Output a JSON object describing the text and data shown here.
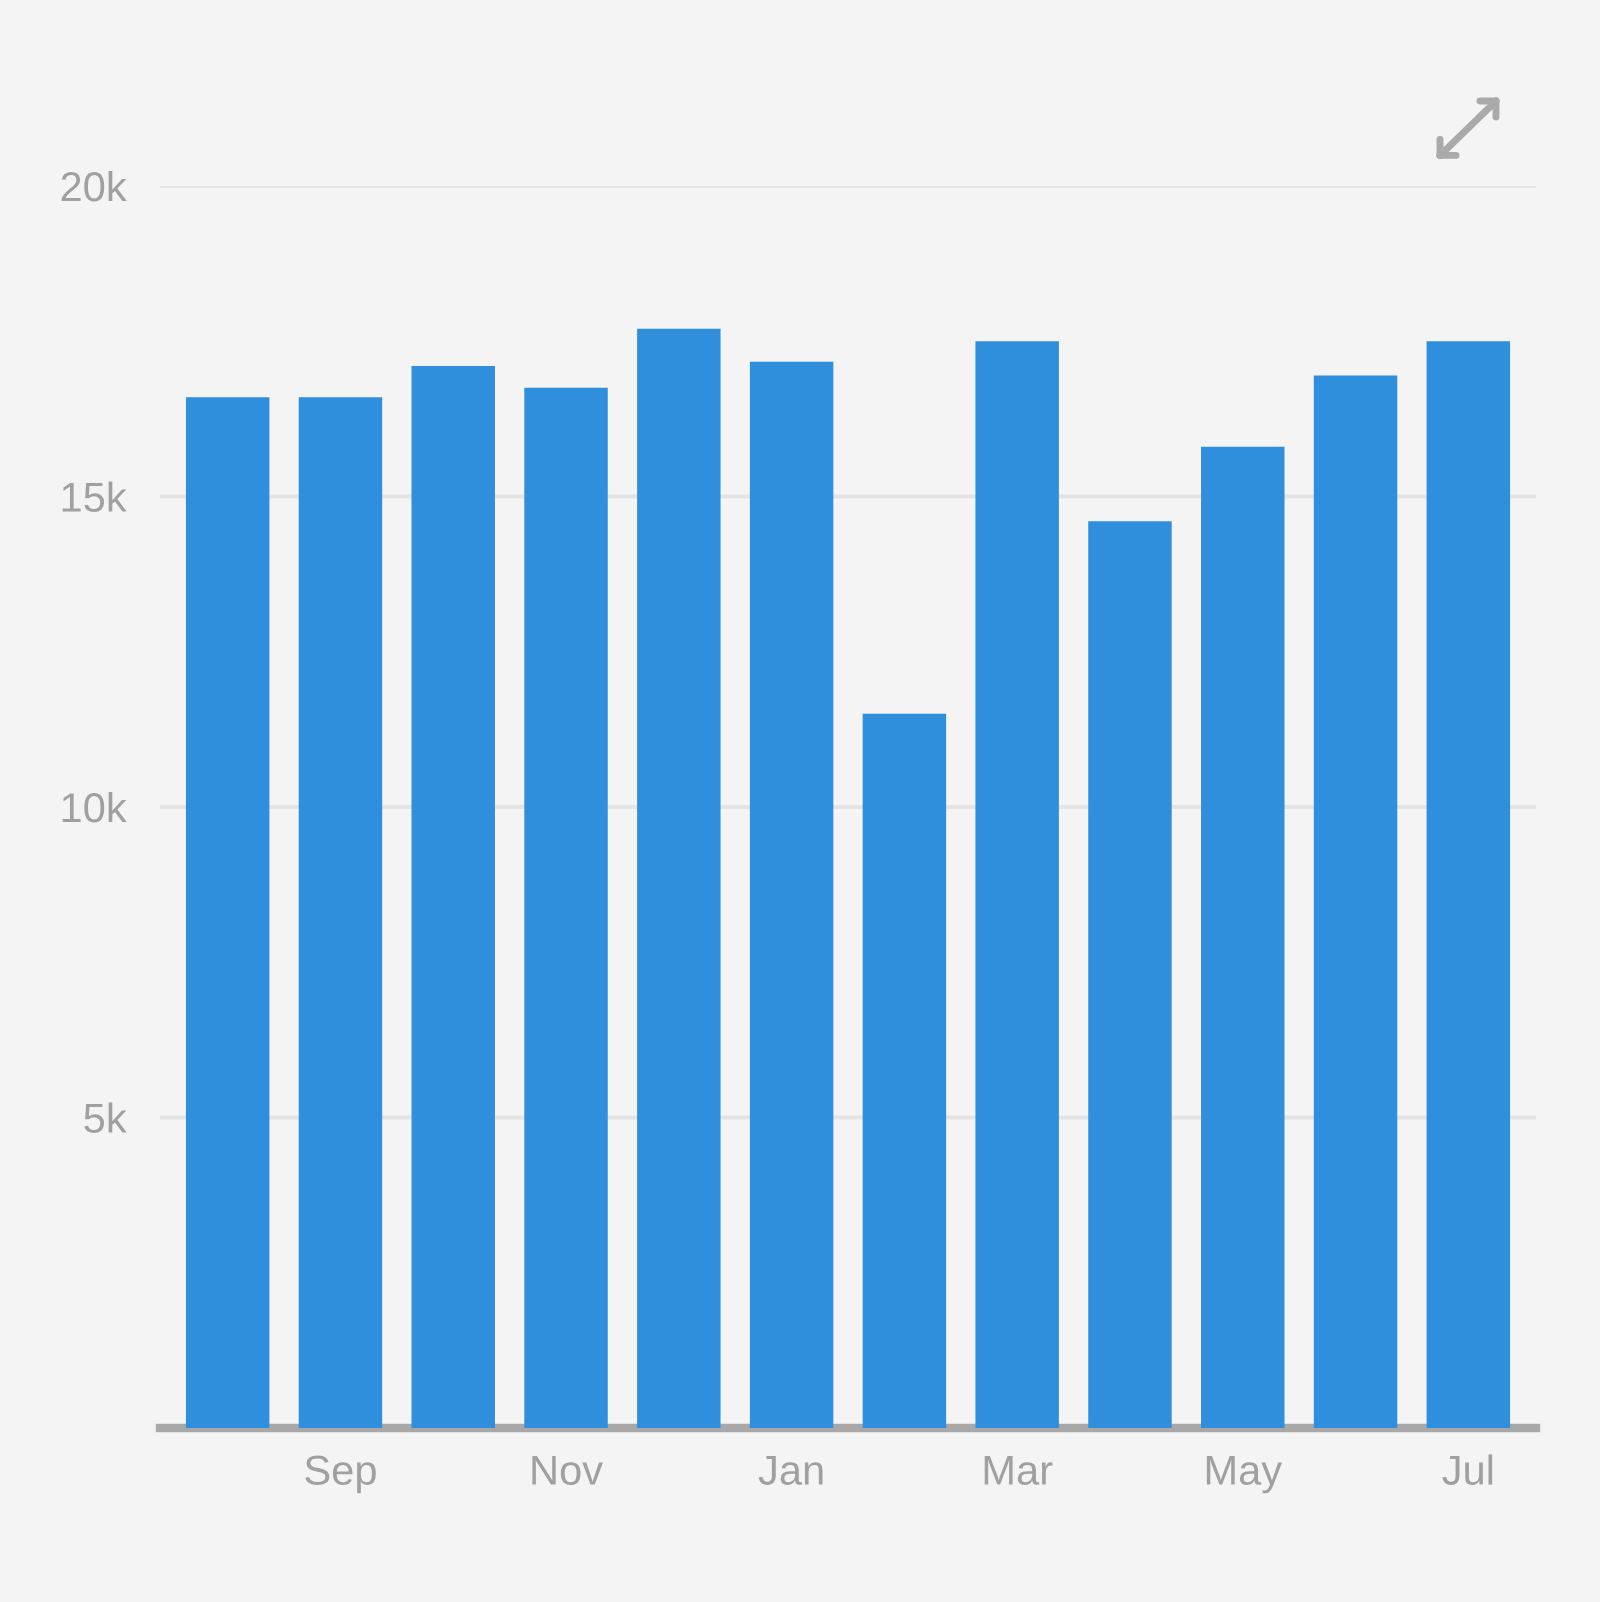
{
  "chart_data": {
    "type": "bar",
    "categories": [
      null,
      "Sep",
      null,
      "Nov",
      null,
      "Jan",
      null,
      "Mar",
      null,
      "May",
      null,
      "Jul"
    ],
    "values": [
      16600,
      16600,
      17100,
      16750,
      17700,
      17170,
      11500,
      17500,
      14600,
      15800,
      16950,
      17500
    ],
    "color": "#2f8fdd",
    "ylim": [
      0,
      20000
    ],
    "yticks": [
      {
        "value": 5000,
        "label": "5k"
      },
      {
        "value": 10000,
        "label": "10k"
      },
      {
        "value": 15000,
        "label": "15k"
      },
      {
        "value": 20000,
        "label": "20k"
      }
    ],
    "grid": "y"
  }
}
